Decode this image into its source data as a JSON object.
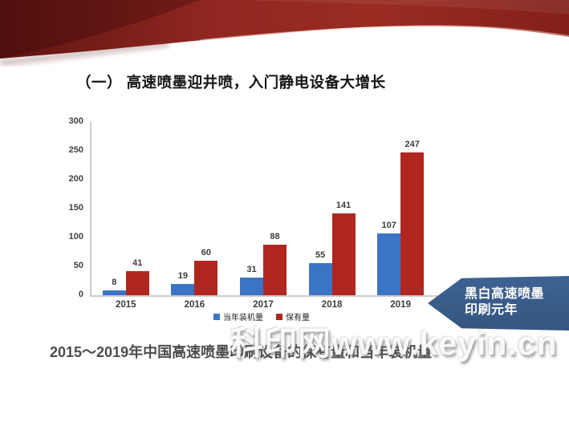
{
  "slide": {
    "title": "（一） 高速喷墨迎井喷，入门静电设备大增长",
    "caption": "2015～2019年中国高速喷墨印刷设备的保有量和当年装机量",
    "watermark": "科印网www.keyin.cn",
    "banner": {
      "line1": "黑白高速喷墨",
      "line2": "印刷元年",
      "color": "#3d6394"
    }
  },
  "chart_data": {
    "type": "bar",
    "title": "",
    "xlabel": "",
    "ylabel": "",
    "categories": [
      "2015",
      "2016",
      "2017",
      "2018",
      "2019"
    ],
    "series": [
      {
        "name": "当年装机量",
        "color": "#3b74c4",
        "values": [
          8,
          19,
          31,
          55,
          107
        ]
      },
      {
        "name": "保有量",
        "color": "#b0271f",
        "values": [
          41,
          60,
          88,
          141,
          247
        ]
      }
    ],
    "ylim": [
      0,
      300
    ],
    "yticks": [
      0,
      50,
      100,
      150,
      200,
      250,
      300
    ],
    "grid": false,
    "legend_position": "bottom"
  },
  "colors": {
    "bar_blue": "#3b74c4",
    "bar_red": "#b0271f",
    "banner_blue": "#3d6394",
    "ribbon_dark_red": "#5e1411",
    "ribbon_red": "#97291f",
    "axis_gray": "#cbcbcb",
    "text_dark": "#3c3c3c"
  }
}
